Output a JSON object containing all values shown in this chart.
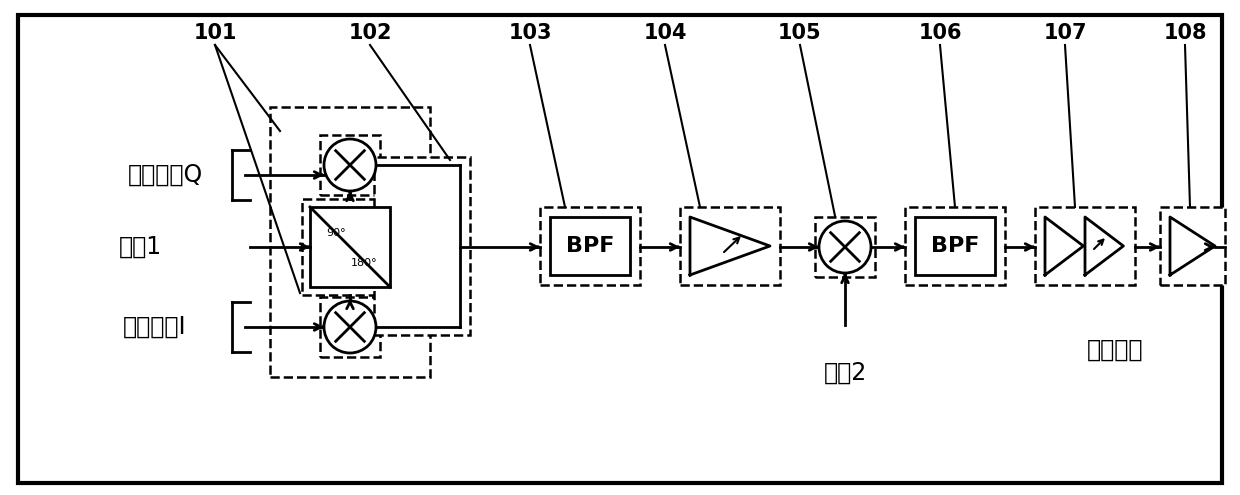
{
  "bg_color": "#ffffff",
  "border_color": "#000000",
  "line_color": "#000000",
  "labels": {
    "baseband_q": "基带信号Q",
    "baseband_i": "基带信号I",
    "lo1": "本振1",
    "lo2": "本振2",
    "rf_out": "射频输出",
    "phase_90": "90°",
    "phase_180": "180°",
    "bpf": "BPF"
  },
  "refs": [
    "101",
    "102",
    "103",
    "104",
    "105",
    "106",
    "107",
    "108"
  ],
  "figsize": [
    12.4,
    4.95
  ],
  "dpi": 100
}
